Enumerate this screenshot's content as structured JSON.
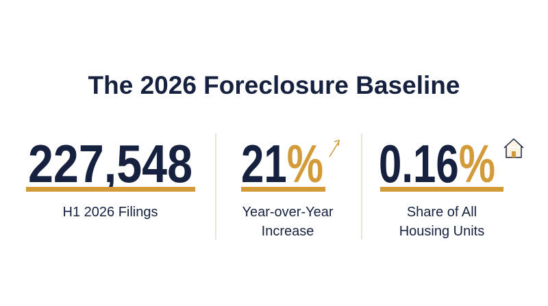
{
  "header": {
    "title": "The 2026 Foreclosure Baseline"
  },
  "stats": [
    {
      "number": "227,548",
      "label_lines": [
        "H1 2026 Filings"
      ]
    },
    {
      "number": "21",
      "suffix": "%",
      "label_lines": [
        "Year-over-Year",
        "Increase"
      ]
    },
    {
      "number": "0.16",
      "suffix": "%",
      "label_lines": [
        "Share of All",
        "Housing Units"
      ]
    }
  ]
}
